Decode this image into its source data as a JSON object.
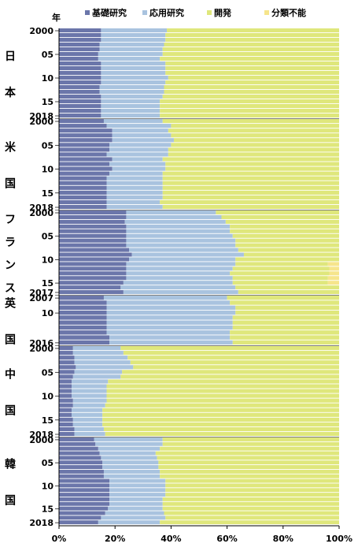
{
  "chart_data": {
    "type": "bar",
    "orientation": "horizontal",
    "stacked": "percent",
    "y_axis_corner_label": "年",
    "legend": [
      {
        "name": "基礎研究",
        "color": "#6b76aa"
      },
      {
        "name": "応用研究",
        "color": "#a9c3df"
      },
      {
        "name": "開発",
        "color": "#dfe77c"
      },
      {
        "name": "分類不能",
        "color": "#f6e58c"
      }
    ],
    "legend_position": "top",
    "x_axis": {
      "min": 0,
      "max": 100,
      "unit": "%",
      "ticks": [
        "0%",
        "20%",
        "40%",
        "60%",
        "80%",
        "100%"
      ]
    },
    "grid": false,
    "panels": [
      {
        "country": "日本",
        "country_chars": [
          "日",
          "本"
        ],
        "start_year": 2000,
        "tick_labels": [
          {
            "year": 2000,
            "text": "2000"
          },
          {
            "year": 2005,
            "text": "05"
          },
          {
            "year": 2010,
            "text": "10"
          },
          {
            "year": 2015,
            "text": "15"
          },
          {
            "year": 2018,
            "text": "2018"
          }
        ],
        "basic": [
          15,
          15,
          15,
          14.5,
          14.5,
          14,
          14,
          15,
          15,
          15,
          15,
          15,
          14.5,
          14.5,
          15,
          15,
          15,
          15,
          15
        ],
        "applied": [
          23.5,
          23,
          23,
          23,
          22.5,
          23,
          22,
          23,
          23,
          23,
          24,
          23,
          23,
          23,
          22,
          21,
          21,
          21,
          21
        ],
        "development": [
          61.5,
          62,
          62,
          62.5,
          63,
          63,
          64,
          62,
          62,
          62,
          61,
          62,
          62.5,
          62.5,
          63,
          64,
          64,
          64,
          64
        ],
        "unclassified": [
          0,
          0,
          0,
          0,
          0,
          0,
          0,
          0,
          0,
          0,
          0,
          0,
          0,
          0,
          0,
          0,
          0,
          0,
          0
        ]
      },
      {
        "country": "米国",
        "country_chars": [
          "米",
          "国"
        ],
        "start_year": 2000,
        "tick_labels": [
          {
            "year": 2000,
            "text": "2000"
          },
          {
            "year": 2005,
            "text": "05"
          },
          {
            "year": 2010,
            "text": "10"
          },
          {
            "year": 2015,
            "text": "15"
          },
          {
            "year": 2018,
            "text": "2018"
          }
        ],
        "basic": [
          16,
          17,
          19,
          19,
          19,
          18,
          18,
          17,
          19,
          18,
          19,
          18,
          17,
          17,
          17,
          17,
          17,
          17,
          17
        ],
        "applied": [
          21,
          23,
          20,
          21,
          22,
          22,
          21,
          22,
          18,
          20,
          19,
          19,
          20,
          20,
          20,
          20,
          20,
          19,
          20
        ],
        "development": [
          63,
          60,
          61,
          60,
          59,
          60,
          61,
          61,
          63,
          62,
          62,
          63,
          63,
          63,
          63,
          63,
          63,
          64,
          63
        ],
        "unclassified": [
          0,
          0,
          0,
          0,
          0,
          0,
          0,
          0,
          0,
          0,
          0,
          0,
          0,
          0,
          0,
          0,
          0,
          0,
          0
        ]
      },
      {
        "country": "フランス",
        "country_chars": [
          "フ",
          "ラ",
          "ン",
          "ス"
        ],
        "start_year": 2000,
        "tick_labels": [
          {
            "year": 2000,
            "text": "2000"
          },
          {
            "year": 2005,
            "text": "05"
          },
          {
            "year": 2010,
            "text": "10"
          },
          {
            "year": 2015,
            "text": "15"
          },
          {
            "year": 2017,
            "text": "2017"
          }
        ],
        "basic": [
          24,
          24,
          23.5,
          24,
          24,
          24,
          24,
          24,
          25,
          26,
          25,
          24,
          24,
          24,
          24,
          23,
          22,
          23
        ],
        "applied": [
          32,
          34,
          36,
          37,
          37,
          38,
          39,
          39,
          39,
          40,
          38,
          39,
          38,
          37,
          38,
          39,
          41,
          41
        ],
        "development": [
          44,
          42,
          40.5,
          39,
          39,
          38,
          37,
          37,
          36,
          34,
          37,
          33,
          34.5,
          35.5,
          34,
          34,
          37,
          36
        ],
        "unclassified": [
          0,
          0,
          0,
          0,
          0,
          0,
          0,
          0,
          0,
          0,
          0,
          4,
          3.5,
          3.5,
          4,
          4,
          0,
          0
        ]
      },
      {
        "country": "英国",
        "country_chars": [
          "英",
          "国"
        ],
        "start_year": 2007,
        "tick_labels": [
          {
            "year": 2007,
            "text": "2007"
          },
          {
            "year": 2010,
            "text": "10"
          },
          {
            "year": 2016,
            "text": "2016"
          }
        ],
        "basic": [
          16,
          17,
          17,
          17,
          17,
          17,
          17,
          17,
          18,
          18
        ],
        "applied": [
          44,
          44,
          46,
          46,
          45,
          45,
          45,
          44,
          43,
          44
        ],
        "development": [
          40,
          39,
          37,
          37,
          38,
          38,
          38,
          39,
          39,
          38
        ],
        "unclassified": [
          0,
          0,
          0,
          0,
          0,
          0,
          0,
          0,
          0,
          0
        ]
      },
      {
        "country": "中国",
        "country_chars": [
          "中",
          "国"
        ],
        "start_year": 2000,
        "tick_labels": [
          {
            "year": 2000,
            "text": "2000"
          },
          {
            "year": 2005,
            "text": "05"
          },
          {
            "year": 2010,
            "text": "10"
          },
          {
            "year": 2015,
            "text": "15"
          },
          {
            "year": 2018,
            "text": "2018"
          }
        ],
        "basic": [
          5,
          5,
          5.5,
          5.5,
          6,
          5.5,
          5,
          4.5,
          4.5,
          4.5,
          4.5,
          5,
          5,
          4.5,
          4.5,
          5,
          5,
          5.5,
          5.5
        ],
        "applied": [
          17,
          18,
          19,
          20,
          20.5,
          17,
          17,
          13,
          12.5,
          12.5,
          12.5,
          12,
          11.5,
          11,
          11,
          10.5,
          10.5,
          10.5,
          11
        ],
        "development": [
          78,
          77,
          75.5,
          74.5,
          73.5,
          77.5,
          78,
          82.5,
          83,
          83,
          83,
          83,
          83.5,
          84.5,
          84.5,
          84.5,
          84.5,
          84,
          83.5
        ],
        "unclassified": [
          0,
          0,
          0,
          0,
          0,
          0,
          0,
          0,
          0,
          0,
          0,
          0,
          0,
          0,
          0,
          0,
          0,
          0,
          0
        ]
      },
      {
        "country": "韓国",
        "country_chars": [
          "韓",
          "国"
        ],
        "start_year": 2000,
        "tick_labels": [
          {
            "year": 2000,
            "text": "2000"
          },
          {
            "year": 2005,
            "text": "05"
          },
          {
            "year": 2010,
            "text": "10"
          },
          {
            "year": 2015,
            "text": "15"
          },
          {
            "year": 2018,
            "text": "2018"
          }
        ],
        "basic": [
          12.5,
          13,
          14,
          14.5,
          15,
          15.5,
          15.5,
          16,
          16,
          18,
          18,
          18,
          18,
          18,
          18,
          17.5,
          16.5,
          15,
          14
        ],
        "applied": [
          24.5,
          24,
          22,
          20,
          20,
          20,
          20,
          20,
          20,
          20,
          20,
          20,
          20,
          19,
          19,
          19.5,
          21,
          23,
          22
        ],
        "development": [
          63,
          63,
          64,
          65.5,
          65,
          64.5,
          64.5,
          64,
          64,
          62,
          62,
          62,
          62,
          63,
          63,
          63,
          62.5,
          62,
          64
        ],
        "unclassified": [
          0,
          0,
          0,
          0,
          0,
          0,
          0,
          0,
          0,
          0,
          0,
          0,
          0,
          0,
          0,
          0,
          0,
          0,
          0
        ]
      }
    ]
  }
}
